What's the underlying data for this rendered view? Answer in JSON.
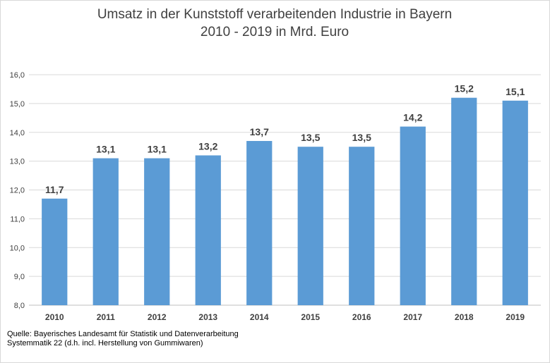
{
  "chart_data": {
    "type": "bar",
    "title": [
      "Umsatz in der Kunststoff verarbeitenden Industrie in Bayern",
      "2010 - 2019 in Mrd. Euro"
    ],
    "categories": [
      "2010",
      "2011",
      "2012",
      "2013",
      "2014",
      "2015",
      "2016",
      "2017",
      "2018",
      "2019"
    ],
    "values": [
      11.7,
      13.1,
      13.1,
      13.2,
      13.7,
      13.5,
      13.5,
      14.2,
      15.2,
      15.1
    ],
    "value_labels": [
      "11,7",
      "13,1",
      "13,1",
      "13,2",
      "13,7",
      "13,5",
      "13,5",
      "14,2",
      "15,2",
      "15,1"
    ],
    "ylim": [
      8,
      16
    ],
    "yticks": [
      "8,0",
      "9,0",
      "10,0",
      "11,0",
      "12,0",
      "13,0",
      "14,0",
      "15,0",
      "16,0"
    ],
    "xlabel": "",
    "ylabel": "",
    "grid": true,
    "legend": "none",
    "bar_color": "#5b9bd5",
    "grid_color": "#d9d9d9"
  },
  "source": {
    "line1": "Quelle:  Bayerisches Landesamt für Statistik und Datenverarbeitung",
    "line2": "Systemmatik 22 (d.h. incl. Herstellung von Gummiwaren)"
  }
}
